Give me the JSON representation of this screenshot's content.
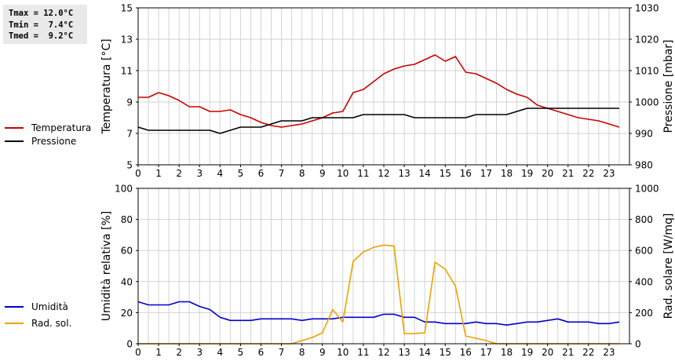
{
  "stats": {
    "tmax": "Tmax = 12.0°C",
    "tmin": "Tmin =  7.4°C",
    "tmed": "Tmed =  9.2°C"
  },
  "legend_top": [
    {
      "label": "Temperatura",
      "color": "#cc0000"
    },
    {
      "label": "Pressione",
      "color": "#000000"
    }
  ],
  "legend_bottom": [
    {
      "label": "Umidità",
      "color": "#0000cc"
    },
    {
      "label": "Rad. sol.",
      "color": "#f0a000"
    }
  ],
  "chart_data": [
    {
      "type": "line",
      "ylabel": "Temperatura [°C]",
      "y2label": "Pressione [mbar]",
      "xlim": [
        0,
        24
      ],
      "ylim": [
        5,
        15
      ],
      "y2lim": [
        980,
        1030
      ],
      "xticks": [
        "0",
        "1",
        "2",
        "3",
        "4",
        "5",
        "6",
        "7",
        "8",
        "9",
        "10",
        "11",
        "12",
        "13",
        "14",
        "15",
        "16",
        "17",
        "18",
        "19",
        "20",
        "21",
        "22",
        "23"
      ],
      "yticks": [
        "5",
        "7",
        "9",
        "11",
        "13",
        "15"
      ],
      "y2ticks": [
        "980",
        "990",
        "1000",
        "1010",
        "1020",
        "1030"
      ],
      "grid": true,
      "series": [
        {
          "name": "Temperatura",
          "axis": "left",
          "color": "#cc0000",
          "x": [
            0,
            0.5,
            1,
            1.5,
            2,
            2.5,
            3,
            3.5,
            4,
            4.5,
            5,
            5.5,
            6,
            6.5,
            7,
            7.5,
            8,
            8.5,
            9,
            9.5,
            10,
            10.5,
            11,
            11.5,
            12,
            12.5,
            13,
            13.5,
            14,
            14.5,
            15,
            15.5,
            16,
            16.5,
            17,
            17.5,
            18,
            18.5,
            19,
            19.5,
            20,
            20.5,
            21,
            21.5,
            22,
            22.5,
            23,
            23.5
          ],
          "y": [
            9.3,
            9.3,
            9.6,
            9.4,
            9.1,
            8.7,
            8.7,
            8.4,
            8.4,
            8.5,
            8.2,
            8.0,
            7.7,
            7.5,
            7.4,
            7.5,
            7.6,
            7.8,
            8.0,
            8.3,
            8.4,
            9.6,
            9.8,
            10.3,
            10.8,
            11.1,
            11.3,
            11.4,
            11.7,
            12.0,
            11.6,
            11.9,
            10.9,
            10.8,
            10.5,
            10.2,
            9.8,
            9.5,
            9.3,
            8.8,
            8.6,
            8.4,
            8.2,
            8.0,
            7.9,
            7.8,
            7.6,
            7.4
          ]
        },
        {
          "name": "Pressione",
          "axis": "right",
          "color": "#000000",
          "x": [
            0,
            0.5,
            1,
            1.5,
            2,
            2.5,
            3,
            3.5,
            4,
            4.5,
            5,
            5.5,
            6,
            6.5,
            7,
            7.5,
            8,
            8.5,
            9,
            9.5,
            10,
            10.5,
            11,
            11.5,
            12,
            12.5,
            13,
            13.5,
            14,
            14.5,
            15,
            15.5,
            16,
            16.5,
            17,
            17.5,
            18,
            18.5,
            19,
            19.5,
            20,
            20.5,
            21,
            21.5,
            22,
            22.5,
            23,
            23.5
          ],
          "y": [
            992,
            991,
            991,
            991,
            991,
            991,
            991,
            991,
            990,
            991,
            992,
            992,
            992,
            993,
            994,
            994,
            994,
            995,
            995,
            995,
            995,
            995,
            996,
            996,
            996,
            996,
            996,
            995,
            995,
            995,
            995,
            995,
            995,
            996,
            996,
            996,
            996,
            997,
            998,
            998,
            998,
            998,
            998,
            998,
            998,
            998,
            998,
            998
          ]
        }
      ]
    },
    {
      "type": "line",
      "ylabel": "Umidità relativa [%]",
      "y2label": "Rad. solare [W/mq]",
      "xlim": [
        0,
        24
      ],
      "ylim": [
        0,
        100
      ],
      "y2lim": [
        0,
        1000
      ],
      "xticks": [
        "0",
        "1",
        "2",
        "3",
        "4",
        "5",
        "6",
        "7",
        "8",
        "9",
        "10",
        "11",
        "12",
        "13",
        "14",
        "15",
        "16",
        "17",
        "18",
        "19",
        "20",
        "21",
        "22",
        "23"
      ],
      "yticks": [
        "0",
        "20",
        "40",
        "60",
        "80",
        "100"
      ],
      "y2ticks": [
        "0",
        "200",
        "400",
        "600",
        "800",
        "1000"
      ],
      "grid": true,
      "series": [
        {
          "name": "Umidità",
          "axis": "left",
          "color": "#0000cc",
          "x": [
            0,
            0.5,
            1,
            1.5,
            2,
            2.5,
            3,
            3.5,
            4,
            4.5,
            5,
            5.5,
            6,
            6.5,
            7,
            7.5,
            8,
            8.5,
            9,
            9.5,
            10,
            10.5,
            11,
            11.5,
            12,
            12.5,
            13,
            13.5,
            14,
            14.5,
            15,
            15.5,
            16,
            16.5,
            17,
            17.5,
            18,
            18.5,
            19,
            19.5,
            20,
            20.5,
            21,
            21.5,
            22,
            22.5,
            23,
            23.5
          ],
          "y": [
            27,
            25,
            25,
            25,
            27,
            27,
            24,
            22,
            17,
            15,
            15,
            15,
            16,
            16,
            16,
            16,
            15,
            16,
            16,
            16,
            17,
            17,
            17,
            17,
            19,
            19,
            17,
            17,
            14,
            14,
            13,
            13,
            13,
            14,
            13,
            13,
            12,
            13,
            14,
            14,
            15,
            16,
            14,
            14,
            14,
            13,
            13,
            14
          ]
        },
        {
          "name": "Rad. sol.",
          "axis": "right",
          "color": "#f0a000",
          "x": [
            0,
            1,
            2,
            3,
            4,
            5,
            6,
            7,
            7.5,
            8,
            8.5,
            9,
            9.5,
            10,
            10.5,
            11,
            11.5,
            12,
            12.5,
            13,
            13.5,
            14,
            14.5,
            15,
            15.5,
            16,
            16.5,
            17,
            17.5,
            18,
            19,
            20,
            21,
            22,
            23,
            23.5
          ],
          "y": [
            0,
            0,
            0,
            0,
            0,
            0,
            0,
            0,
            0,
            20,
            40,
            70,
            220,
            140,
            530,
            590,
            620,
            635,
            630,
            65,
            65,
            70,
            525,
            480,
            370,
            50,
            35,
            20,
            0,
            0,
            0,
            0,
            0,
            0,
            0,
            0
          ]
        }
      ]
    }
  ]
}
